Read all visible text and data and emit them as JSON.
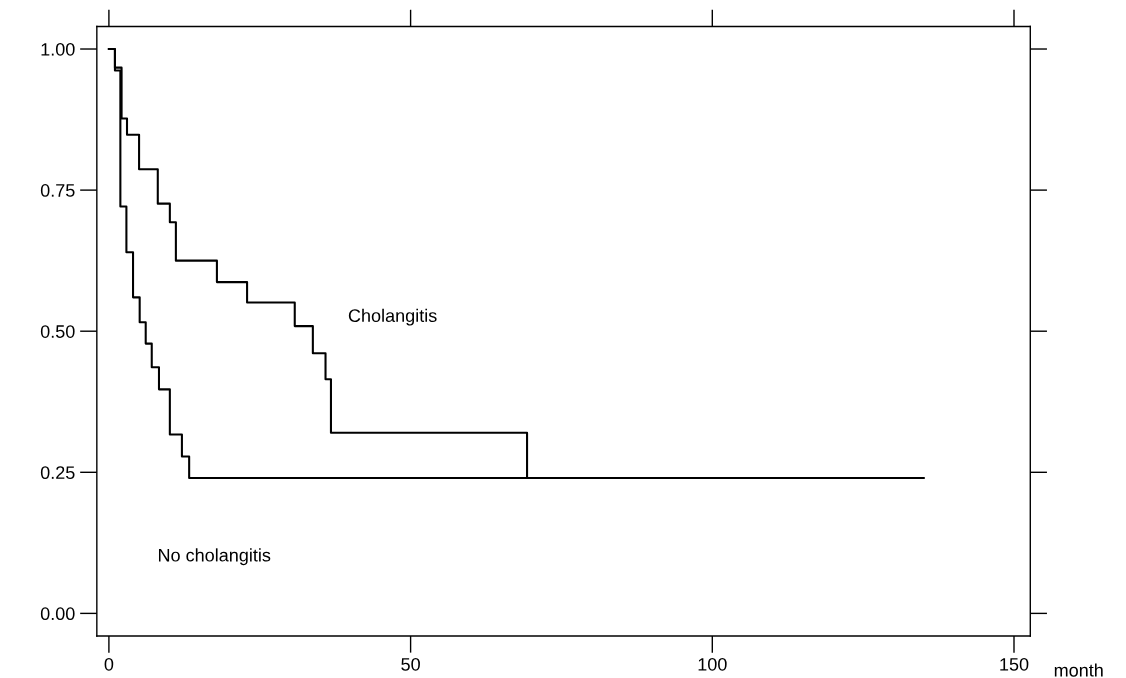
{
  "chart_data": {
    "type": "step",
    "xlabel": "month",
    "series": [
      {
        "color": "#000000",
        "x": [
          0,
          1.0,
          2.1,
          3.0,
          5.0,
          8.1,
          10.1,
          11.1,
          17.9,
          22.9,
          30.8,
          33.8,
          35.9,
          36.8,
          69.3,
          135
        ],
        "values": [
          1.0,
          0.967,
          0.877,
          0.848,
          0.787,
          0.726,
          0.693,
          0.625,
          0.587,
          0.551,
          0.509,
          0.461,
          0.415,
          0.32,
          0.24,
          0.24
        ]
      },
      {
        "color": "#000000",
        "x": [
          0,
          1.0,
          1.9,
          2.9,
          4.0,
          5.1,
          6.1,
          7.1,
          8.3,
          10.1,
          12.1,
          13.3,
          135
        ],
        "values": [
          1.0,
          0.962,
          0.721,
          0.64,
          0.56,
          0.516,
          0.478,
          0.436,
          0.397,
          0.317,
          0.278,
          0.24,
          0.24
        ]
      }
    ],
    "annotations": [
      "Cholangitis",
      "No cholangitis"
    ],
    "xlim": [
      -2,
      152.7
    ],
    "ylim": [
      -0.04,
      1.04
    ],
    "xticks": [
      0,
      50,
      100,
      150
    ],
    "yticks": [
      {
        "value": 0,
        "label": "0.00"
      },
      {
        "value": 0.25,
        "label": "0.25"
      },
      {
        "value": 0.5,
        "label": "0.50"
      },
      {
        "value": 0.75,
        "label": "0.75"
      },
      {
        "value": 1,
        "label": "1.00"
      }
    ],
    "grid": false,
    "legend": false
  }
}
